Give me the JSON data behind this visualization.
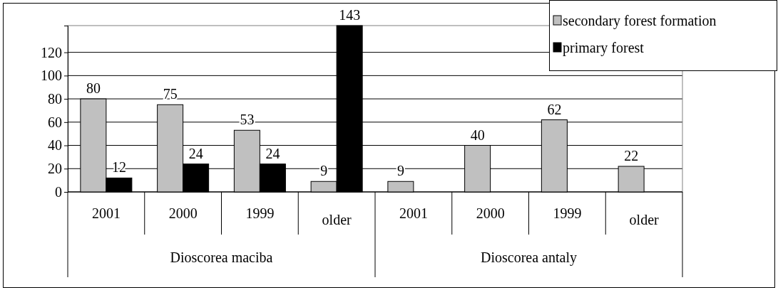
{
  "chart_data": {
    "type": "bar",
    "categories": [
      "2001",
      "2000",
      "1999",
      "older",
      "2001",
      "2000",
      "1999",
      "older"
    ],
    "series": [
      {
        "name": "secondary forest formation",
        "color": "#c0c0c0",
        "values": [
          80,
          75,
          53,
          9,
          9,
          40,
          62,
          22
        ]
      },
      {
        "name": "primary forest",
        "color": "#000000",
        "values": [
          12,
          24,
          24,
          143,
          null,
          null,
          null,
          null
        ]
      }
    ],
    "ylim": [
      0,
      143
    ],
    "yticks": [
      0,
      20,
      40,
      60,
      80,
      100,
      120
    ],
    "grid": "y",
    "legend": "top right",
    "data_labels": true,
    "annotations": [
      "Dioscorea maciba",
      "Dioscorea antaly"
    ]
  }
}
